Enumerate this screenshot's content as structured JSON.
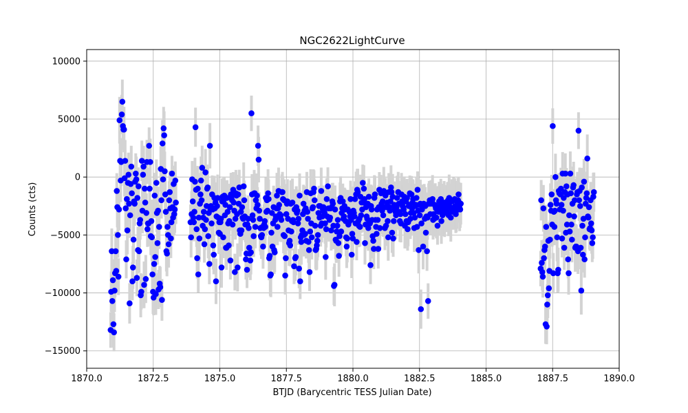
{
  "chart_data": {
    "type": "scatter",
    "title": "NGC2622LightCurve",
    "xlabel": "BTJD (Barycentric TESS Julian Date)",
    "ylabel": "Counts (cts)",
    "xlim": [
      1870.0,
      1890.0
    ],
    "ylim": [
      -16500,
      11000
    ],
    "xticks": [
      1870.0,
      1872.5,
      1875.0,
      1877.5,
      1880.0,
      1882.5,
      1885.0,
      1887.5,
      1890.0
    ],
    "xtick_labels": [
      "1870.0",
      "1872.5",
      "1875.0",
      "1877.5",
      "1880.0",
      "1882.5",
      "1885.0",
      "1887.5",
      "1890.0"
    ],
    "yticks": [
      -15000,
      -10000,
      -5000,
      0,
      5000,
      10000
    ],
    "ytick_labels": [
      "−15000",
      "−10000",
      "−5000",
      "0",
      "5000",
      "10000"
    ],
    "grid": true,
    "marker_color": "#0000ff",
    "errorbar_color": "#d3d3d3",
    "error_magnitude": 1800,
    "segments": [
      {
        "x_start": 1870.9,
        "x_end": 1873.35,
        "values": [
          -13200,
          -9900,
          -6400,
          -10700,
          -8900,
          -12700,
          -13400,
          -9800,
          -8300,
          -6400,
          -8100,
          -1200,
          -2600,
          -5000,
          -8600,
          -2800,
          4900,
          1400,
          -300,
          1300,
          5400,
          6500,
          4400,
          4100,
          4100,
          -100,
          1400,
          -2700,
          -7100,
          -1900,
          -4600,
          -500,
          200,
          -2300,
          -10900,
          -3300,
          -600,
          900,
          -1400,
          -9000,
          -7800,
          -5400,
          -2100,
          -2300,
          -400,
          300,
          -200,
          -8700,
          -1800,
          -6300,
          -800,
          -6400,
          -4000,
          -3700,
          -10200,
          -9900,
          1400,
          -2900,
          200,
          900,
          -9300,
          -1000,
          -2200,
          -8800,
          -3100,
          1300,
          -4500,
          -4000,
          -4000,
          2700,
          -1000,
          1300,
          -5100,
          -3800,
          -5200,
          -8400,
          -9900,
          -10400,
          -7500,
          -1600,
          -6900,
          -10100,
          -500,
          -3100,
          -5700,
          -2900,
          -9700,
          -4300,
          -9200,
          -9500,
          700,
          -2000,
          -10600,
          2900,
          -200,
          4200,
          3600,
          500,
          -1500,
          -3000,
          -6400,
          -6600,
          -4300,
          -5000,
          -5800,
          -2000,
          -1300,
          -2700,
          -5300,
          -3900,
          300,
          -2600,
          -3500,
          -600,
          -3200,
          -2800,
          -300,
          -2200
        ]
      },
      {
        "x_start": 1873.9,
        "x_end": 1884.05,
        "values": [
          -3900,
          -5200,
          -3200,
          -200,
          -2100,
          -3500,
          -3900,
          -3000,
          -400,
          4300,
          -1100,
          -4500,
          -7000,
          -1000,
          -8400,
          -3500,
          -5300,
          -2300,
          -1500,
          -300,
          -2000,
          800,
          -4200,
          -3500,
          -3000,
          -5800,
          -4500,
          400,
          -3700,
          -2500,
          -1000,
          -900,
          -5100,
          -3100,
          -7500,
          2700,
          -2800,
          -2500,
          -4000,
          -1500,
          -2800,
          -5900,
          -6700,
          -1800,
          -2700,
          -2200,
          -9000,
          -3400,
          -2500,
          -1800,
          -3500,
          -4800,
          -3900,
          -4900,
          -3900,
          -3600,
          -7800,
          -2100,
          -1700,
          -5200,
          -2000,
          -1600,
          -3300,
          -2400,
          -6100,
          -6100,
          -1800,
          -3000,
          -4000,
          -5900,
          -3800,
          -2600,
          -7200,
          -1500,
          -1700,
          -2000,
          -4100,
          -1100,
          -2200,
          -2900,
          -8200,
          -3600,
          -1400,
          -1600,
          -3200,
          -7800,
          -1500,
          -2300,
          -900,
          -4600,
          -4900,
          -3000,
          -4600,
          -2600,
          -3500,
          -3600,
          -800,
          -2000,
          -3400,
          -4100,
          -7100,
          -6600,
          -8000,
          -4100,
          -3600,
          -4400,
          -6100,
          -6600,
          -7200,
          -6500,
          5500,
          -1500,
          -3300,
          -3700,
          -5100,
          -1400,
          -1400,
          -4300,
          -2000,
          -2700,
          -1600,
          -2400,
          2700,
          1500,
          -2900,
          -3600,
          -4400,
          -5100,
          -5200,
          -5000,
          -4300,
          -6000,
          -4400,
          -4100,
          -3800,
          -4300,
          -1800,
          -3000,
          -2000,
          -2900,
          -1400,
          -1900,
          -7000,
          -6800,
          -8500,
          -8400,
          -4800,
          -3100,
          -6000,
          -4000,
          -2600,
          -6300,
          -6500,
          -3700,
          -3400,
          -2700,
          -1600,
          -4300,
          -2700,
          -1200,
          -2400,
          -3200,
          -3500,
          -3300,
          -3700,
          -1300,
          -1300,
          -1900,
          -5000,
          -2000,
          -5100,
          -8500,
          -7000,
          -3200,
          -2300,
          -2100,
          -3600,
          -4600,
          -5700,
          -5500,
          -5900,
          -2300,
          -4700,
          -3800,
          -2200,
          -3700,
          -3900,
          -7700,
          -2800,
          -7000,
          -6900,
          -2600,
          -3100,
          -2900,
          -4000,
          -3600,
          -7900,
          -1600,
          -9000,
          -5200,
          -5600,
          -5000,
          -4600,
          -3200,
          -2300,
          -5000,
          -2900,
          -4900,
          -2700,
          -5500,
          -1300,
          -3000,
          -3600,
          -5600,
          -6300,
          -8200,
          -4700,
          -1400,
          -4000,
          -5200,
          -2700,
          -2600,
          -1300,
          -1000,
          -2000,
          -4200,
          -6300,
          -6200,
          -5900,
          -5500,
          -5000,
          -3100,
          -2500,
          -3500,
          -2500,
          -4200,
          -1200,
          -4000,
          -3400,
          -2800,
          -2600,
          -3000,
          -3100,
          -4000,
          -6900,
          -4500,
          -1900,
          -3400,
          -800,
          -2700,
          -3500,
          -3700,
          -3500,
          -2700,
          -4600,
          -2600,
          -2100,
          -2300,
          -4200,
          -9400,
          -9300,
          -2800,
          -5400,
          -5500,
          -4700,
          -4200,
          -3700,
          -5700,
          -6800,
          -5100,
          -2100,
          -1800,
          -4700,
          -3100,
          -2700,
          -2100,
          -3600,
          -3400,
          -2500,
          -2800,
          -3800,
          -5200,
          -6000,
          -5300,
          -2800,
          -4100,
          -3900,
          -3000,
          -3400,
          -1900,
          -3700,
          -6700,
          -4900,
          -5300,
          -2900,
          -3100,
          -3400,
          -1900,
          -4000,
          -1500,
          -5600,
          -1100,
          -1300,
          -3800,
          -4200,
          -3600,
          -4300,
          -1700,
          -3300,
          -2200,
          -2800,
          -500,
          -2200,
          -1000,
          -1900,
          -5700,
          -4100,
          -2600,
          -3400,
          -3600,
          -2300,
          -4400,
          -1700,
          -3800,
          -4000,
          -7600,
          -2500,
          -2800,
          -3700,
          -5100,
          -5500,
          -6200,
          -1800,
          -1500,
          -3700,
          -4300,
          -4900,
          -2800,
          -3700,
          -6200,
          -2600,
          -1100,
          -4400,
          -2700,
          -1400,
          -2300,
          -2900,
          -2100,
          -3300,
          -1200,
          -2600,
          -4400,
          -1600,
          -4200,
          -2600,
          -2200,
          -3800,
          -5200,
          -1300,
          -2600,
          -2900,
          -2100,
          -900,
          -1300,
          -4800,
          -1700,
          -5300,
          -3800,
          -2400,
          -2700,
          -3000,
          -3300,
          -2600,
          -1800,
          -3000,
          -1300,
          -2300,
          -3000,
          -3800,
          -3200,
          -4000,
          -1500,
          -2100,
          -2500,
          -2600,
          -2800,
          -1700,
          -4200,
          -3200,
          -2100,
          -3800,
          -1800,
          -4500,
          -3900,
          -2500,
          -2400,
          -1400,
          -3600,
          -3100,
          -1500,
          -2700,
          -2200,
          -1900,
          -3100,
          -4400,
          -3500,
          -2500,
          -2400,
          -1800,
          -4300,
          -1100,
          -2900,
          -6300,
          -2400,
          -3300,
          -2300,
          -11400,
          -4000,
          -2800,
          -2400,
          -6000,
          -2300,
          -2400,
          -3600,
          -2500,
          -4800,
          -3400,
          -6400,
          -3500,
          -10700,
          -2300,
          -2300,
          -2000,
          -3200,
          -2300,
          -2200,
          -2100,
          -1900,
          -3700,
          -3200,
          -3600,
          -2400,
          -2500,
          -2700,
          -3500,
          -2800,
          -4200,
          -2900,
          -3000,
          -2100,
          -2500,
          -2900,
          -1900,
          -3800,
          -2400,
          -3300,
          -2600,
          -2500,
          -2200,
          -3100,
          -2800,
          -2600,
          -2600,
          -3000,
          -2400,
          -2000,
          -3300,
          -1800,
          -2200,
          -2600,
          -3500,
          -2700,
          -2100,
          -3000,
          -2800,
          -2000,
          -2600,
          -1900,
          -2500,
          -3200,
          -2900,
          -2400,
          -2100,
          -2000,
          -1500,
          -2200,
          -2700,
          -2800,
          -2300
        ]
      },
      {
        "x_start": 1887.05,
        "x_end": 1889.05,
        "values": [
          -7900,
          -2000,
          -7400,
          -8200,
          -8600,
          -2700,
          -7000,
          -6300,
          -6000,
          -12700,
          -4300,
          -12900,
          -11000,
          -10200,
          -5500,
          -9600,
          -8100,
          -5400,
          -2400,
          -2900,
          -1500,
          -4100,
          4400,
          -8300,
          -3000,
          -4300,
          -2900,
          0,
          -2000,
          -2300,
          -5200,
          -8300,
          -8000,
          -1200,
          -1400,
          -2800,
          -1500,
          -1000,
          -2400,
          -5300,
          300,
          -2900,
          -1800,
          -6100,
          -1300,
          300,
          -4800,
          -800,
          -4100,
          -1500,
          -7100,
          -8300,
          -3300,
          -4700,
          300,
          -1400,
          -4100,
          -5400,
          -2300,
          -900,
          -700,
          -3400,
          -2000,
          -6100,
          -6000,
          -6000,
          -1500,
          -1300,
          -6400,
          4000,
          -2000,
          -1200,
          -2500,
          -6100,
          -9800,
          -900,
          -4200,
          -6700,
          -3600,
          -400,
          -7100,
          -5200,
          -2300,
          -1800,
          -1400,
          1600,
          -3400,
          -3500,
          -2600,
          -4500,
          -4400,
          -2000,
          -4000,
          -4600,
          -5700,
          -5200,
          -1700,
          -1300
        ]
      }
    ]
  }
}
